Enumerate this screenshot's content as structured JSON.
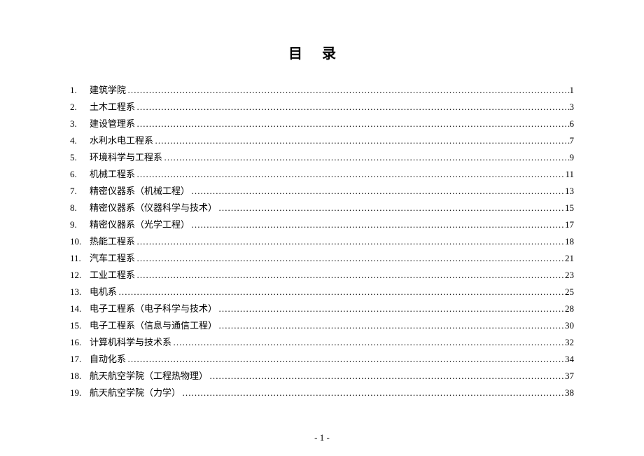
{
  "title": "目录",
  "entries": [
    {
      "num": "1.",
      "label": "建筑学院",
      "page": "1"
    },
    {
      "num": "2.",
      "label": "土木工程系",
      "page": "3"
    },
    {
      "num": "3.",
      "label": "建设管理系",
      "page": "6"
    },
    {
      "num": "4.",
      "label": "水利水电工程系",
      "page": "7"
    },
    {
      "num": "5.",
      "label": "环境科学与工程系",
      "page": "9"
    },
    {
      "num": "6.",
      "label": "机械工程系",
      "page": "11"
    },
    {
      "num": "7.",
      "label": "精密仪器系（机械工程）",
      "page": "13"
    },
    {
      "num": "8.",
      "label": "精密仪器系（仪器科学与技术）",
      "page": "15"
    },
    {
      "num": "9.",
      "label": "精密仪器系（光学工程）",
      "page": "17"
    },
    {
      "num": "10.",
      "label": "热能工程系",
      "page": "18"
    },
    {
      "num": "11.",
      "label": "汽车工程系",
      "page": "21"
    },
    {
      "num": "12.",
      "label": "工业工程系",
      "page": "23"
    },
    {
      "num": "13.",
      "label": "电机系",
      "page": "25"
    },
    {
      "num": "14.",
      "label": "电子工程系（电子科学与技术）",
      "page": "28"
    },
    {
      "num": "15.",
      "label": "电子工程系（信息与通信工程）",
      "page": "30"
    },
    {
      "num": "16.",
      "label": "计算机科学与技术系",
      "page": "32"
    },
    {
      "num": "17.",
      "label": "自动化系",
      "page": "34"
    },
    {
      "num": "18.",
      "label": "航天航空学院（工程热物理）",
      "page": "37"
    },
    {
      "num": "19.",
      "label": "航天航空学院（力学）",
      "page": "38"
    }
  ],
  "footer": "- 1 -",
  "dot_char": "…"
}
